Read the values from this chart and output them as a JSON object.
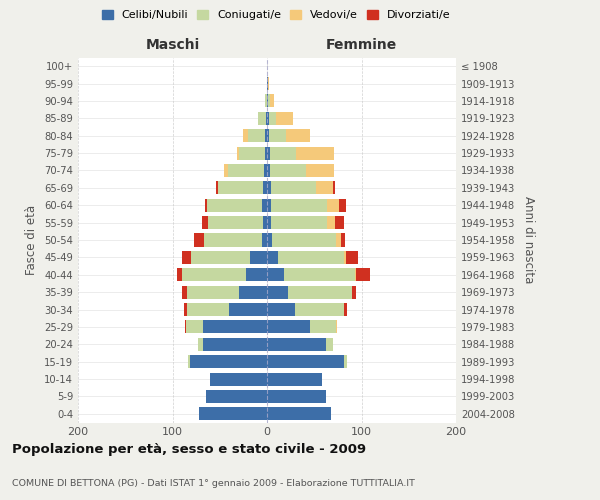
{
  "age_groups": [
    "0-4",
    "5-9",
    "10-14",
    "15-19",
    "20-24",
    "25-29",
    "30-34",
    "35-39",
    "40-44",
    "45-49",
    "50-54",
    "55-59",
    "60-64",
    "65-69",
    "70-74",
    "75-79",
    "80-84",
    "85-89",
    "90-94",
    "95-99",
    "100+"
  ],
  "birth_years": [
    "2004-2008",
    "1999-2003",
    "1994-1998",
    "1989-1993",
    "1984-1988",
    "1979-1983",
    "1974-1978",
    "1969-1973",
    "1964-1968",
    "1959-1963",
    "1954-1958",
    "1949-1953",
    "1944-1948",
    "1939-1943",
    "1934-1938",
    "1929-1933",
    "1924-1928",
    "1919-1923",
    "1914-1918",
    "1909-1913",
    "≤ 1908"
  ],
  "males": {
    "celibi": [
      72,
      65,
      60,
      82,
      68,
      68,
      40,
      30,
      22,
      18,
      5,
      4,
      5,
      4,
      3,
      2,
      2,
      1,
      0,
      0,
      0
    ],
    "coniugati": [
      0,
      0,
      0,
      2,
      5,
      18,
      45,
      55,
      68,
      62,
      62,
      58,
      58,
      48,
      38,
      28,
      18,
      8,
      2,
      0,
      0
    ],
    "vedovi": [
      0,
      0,
      0,
      0,
      0,
      0,
      0,
      0,
      0,
      0,
      0,
      0,
      0,
      0,
      4,
      2,
      5,
      0,
      0,
      0,
      0
    ],
    "divorziati": [
      0,
      0,
      0,
      0,
      0,
      1,
      3,
      5,
      5,
      10,
      10,
      7,
      3,
      2,
      0,
      0,
      0,
      0,
      0,
      0,
      0
    ]
  },
  "females": {
    "nubili": [
      68,
      62,
      58,
      82,
      62,
      45,
      30,
      22,
      18,
      12,
      5,
      4,
      4,
      4,
      3,
      3,
      2,
      2,
      1,
      1,
      0
    ],
    "coniugate": [
      0,
      0,
      0,
      3,
      8,
      28,
      52,
      68,
      75,
      70,
      68,
      60,
      60,
      48,
      38,
      28,
      18,
      8,
      2,
      0,
      0
    ],
    "vedove": [
      0,
      0,
      0,
      0,
      0,
      1,
      0,
      0,
      1,
      2,
      5,
      8,
      12,
      18,
      30,
      40,
      25,
      18,
      4,
      1,
      0
    ],
    "divorziate": [
      0,
      0,
      0,
      0,
      0,
      0,
      3,
      4,
      15,
      12,
      5,
      10,
      8,
      2,
      0,
      0,
      0,
      0,
      0,
      0,
      0
    ]
  },
  "colors": {
    "celibi": "#3d6ea8",
    "coniugati": "#c5d8a0",
    "vedovi": "#f5c97a",
    "divorziati": "#d03020"
  },
  "title": "Popolazione per età, sesso e stato civile - 2009",
  "subtitle": "COMUNE DI BETTONA (PG) - Dati ISTAT 1° gennaio 2009 - Elaborazione TUTTITALIA.IT",
  "xlabel_left": "Maschi",
  "xlabel_right": "Femmine",
  "ylabel_left": "Fasce di età",
  "ylabel_right": "Anni di nascita",
  "xlim": 200,
  "bg_color": "#f0f0eb",
  "plot_bg_color": "#ffffff"
}
